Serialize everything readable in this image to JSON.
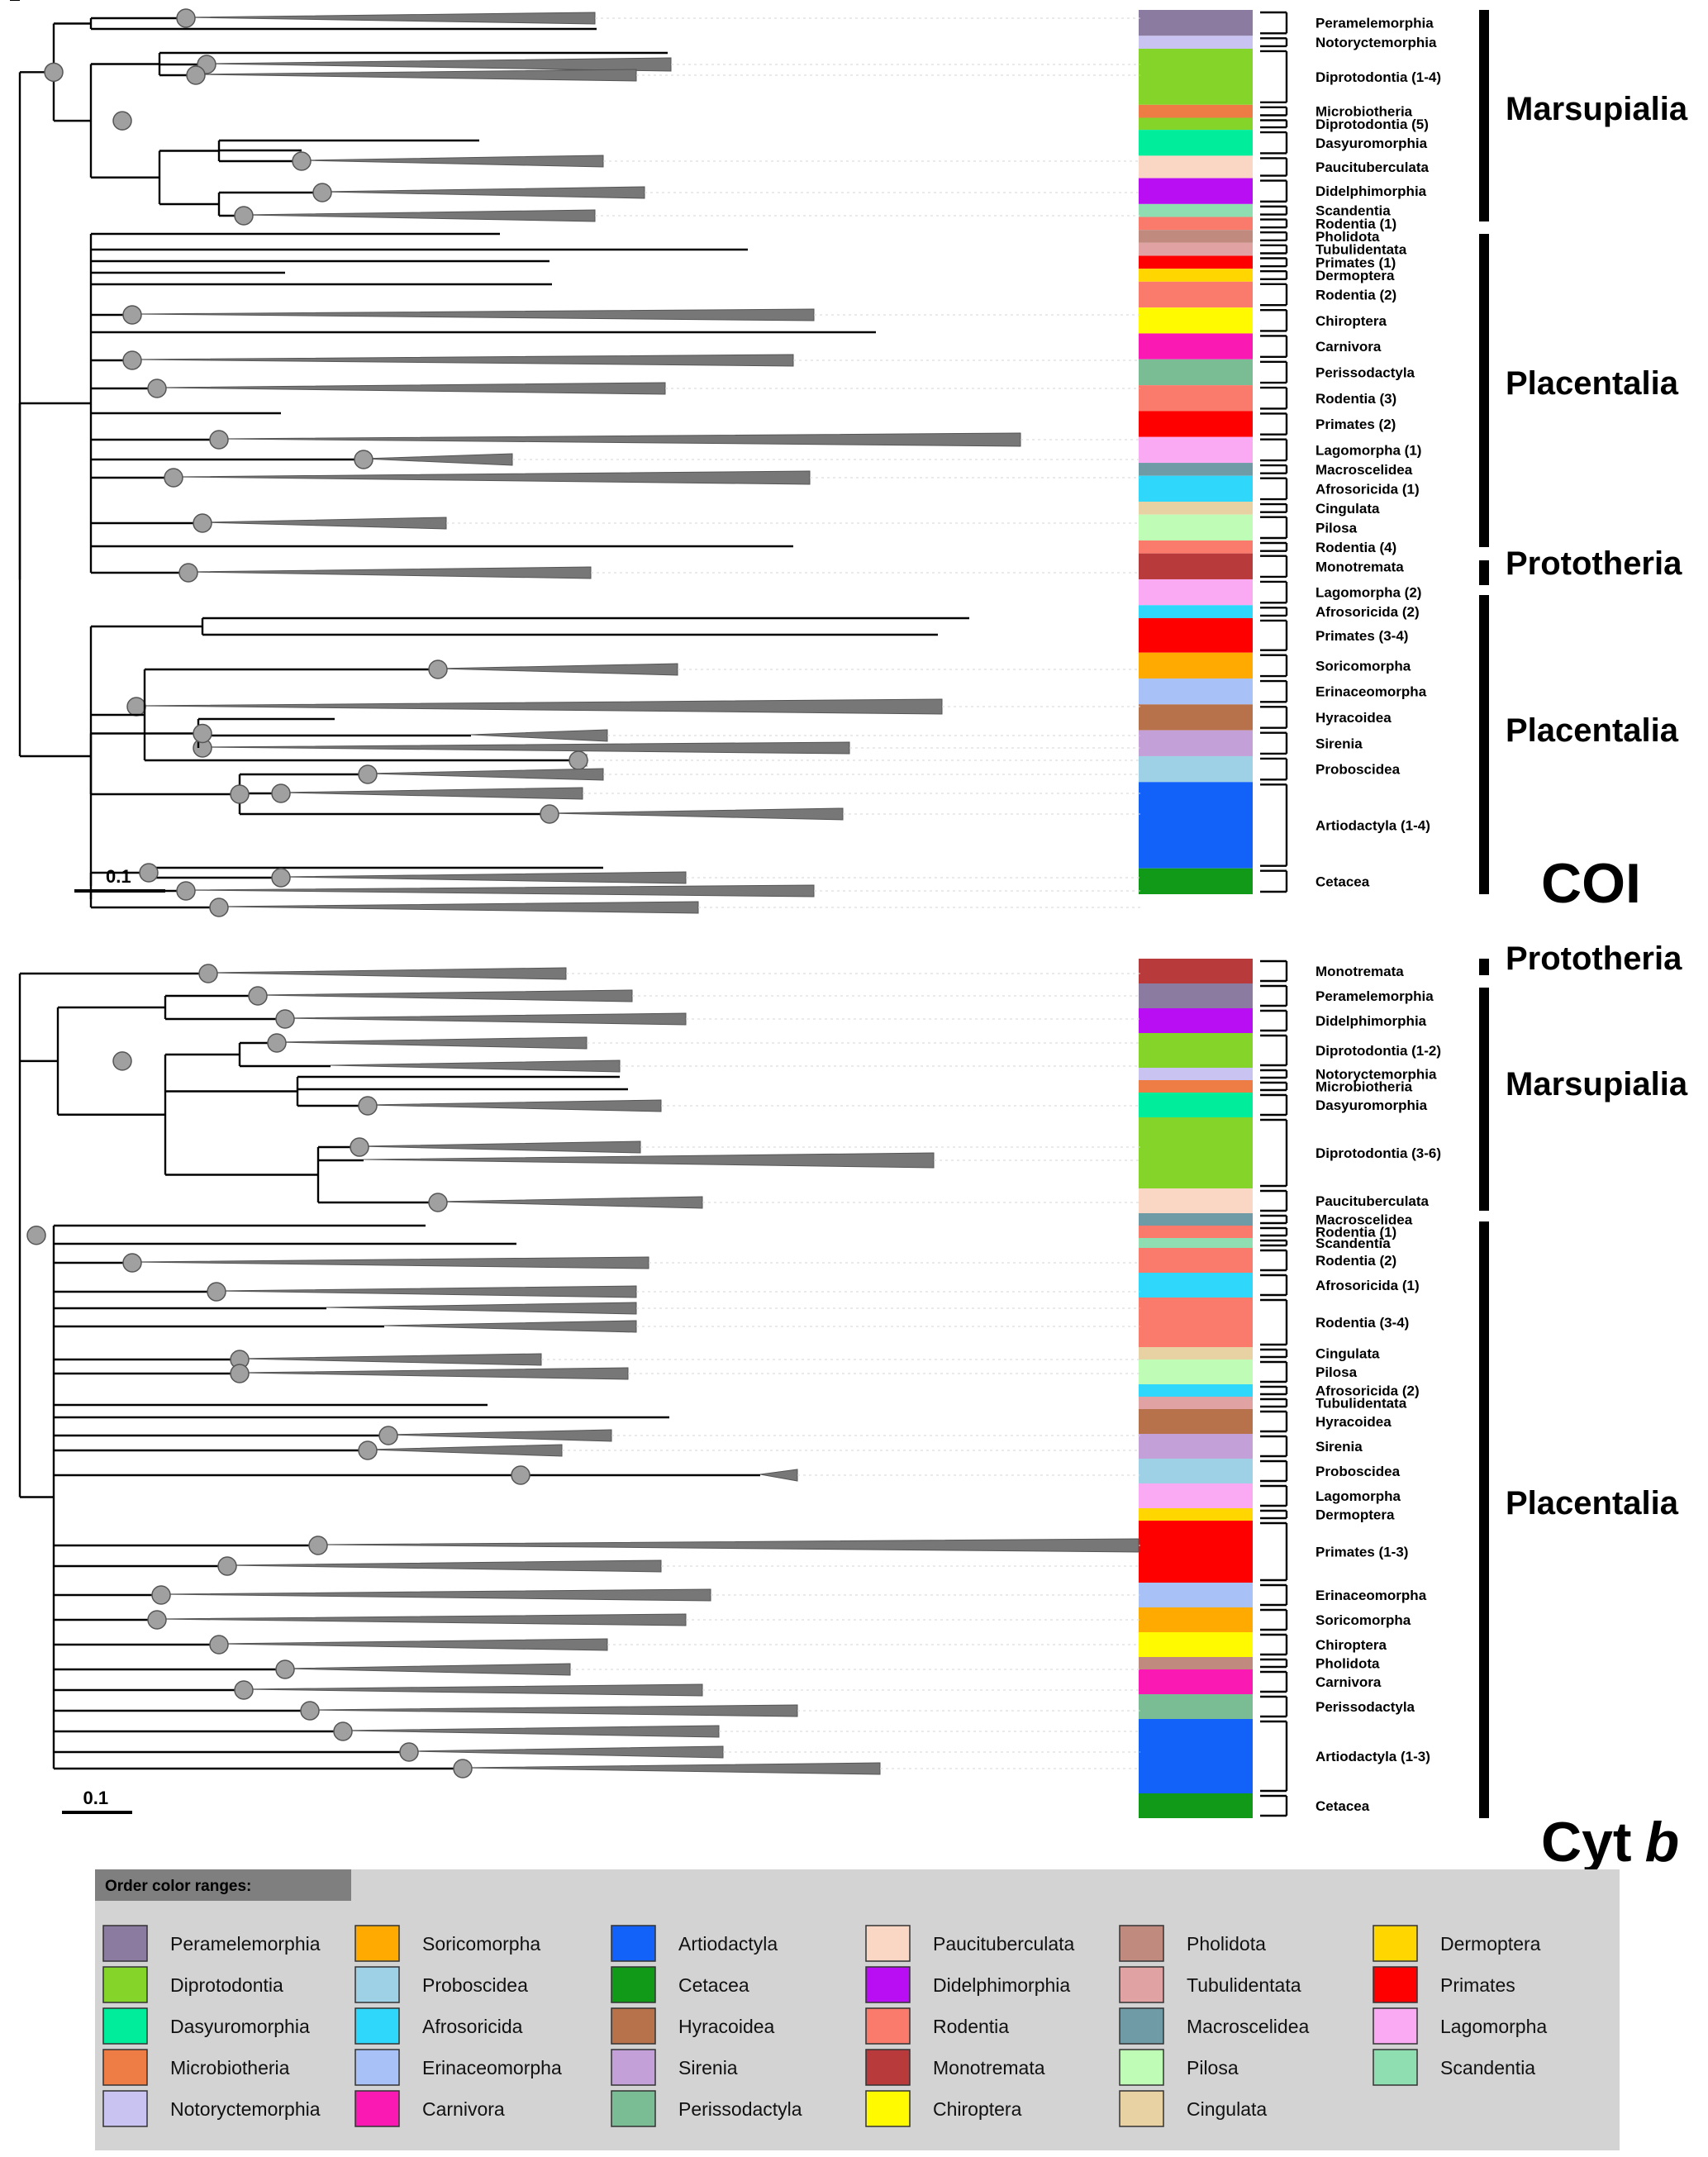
{
  "panels": [
    {
      "id": "coi",
      "marker": "COI",
      "marker_italic": false,
      "scale_label": "0.1",
      "bars": [
        {
          "color": "#8B7BA0",
          "label": "Peramelemorphia"
        },
        {
          "color": "#C8C3F0",
          "label": "Notoryctemorphia"
        },
        {
          "color": "#85D42A",
          "label": "Diprotodontia (1-4)"
        },
        {
          "color": "#EE7C45",
          "label": "Microbiotheria"
        },
        {
          "color": "#85D42A",
          "label": "Diprotodontia (5)"
        },
        {
          "color": "#00EE9B",
          "label": "Dasyuromorphia"
        },
        {
          "color": "#FAD6C4",
          "label": "Paucituberculata"
        },
        {
          "color": "#B90EF3",
          "label": "Didelphimorphia"
        },
        {
          "color": "#8FDEB1",
          "label": "Scandentia"
        },
        {
          "color": "#FA7A6C",
          "label": "Rodentia (1)"
        },
        {
          "color": "#C08A7E",
          "label": "Pholidota"
        },
        {
          "color": "#E0A2A2",
          "label": "Tubulidentata"
        },
        {
          "color": "#FF0000",
          "label": "Primates (1)"
        },
        {
          "color": "#FFD600",
          "label": "Dermoptera"
        },
        {
          "color": "#FA7A6C",
          "label": "Rodentia (2)"
        },
        {
          "color": "#FFFA00",
          "label": "Chiroptera"
        },
        {
          "color": "#FA1AB3",
          "label": "Carnivora"
        },
        {
          "color": "#7ABC94",
          "label": "Perissodactyla"
        },
        {
          "color": "#FA7A6C",
          "label": "Rodentia (3)"
        },
        {
          "color": "#FF0000",
          "label": "Primates (2)"
        },
        {
          "color": "#FAAAF2",
          "label": "Lagomorpha (1)"
        },
        {
          "color": "#6E9BA6",
          "label": "Macroscelidea"
        },
        {
          "color": "#2FD7FA",
          "label": "Afrosoricida (1)"
        },
        {
          "color": "#E8D1A2",
          "label": "Cingulata"
        },
        {
          "color": "#BFFDB7",
          "label": "Pilosa"
        },
        {
          "color": "#FA7A6C",
          "label": "Rodentia (4)"
        },
        {
          "color": "#B83A3A",
          "label": "Monotremata"
        },
        {
          "color": "#FAAAF2",
          "label": "Lagomorpha (2)"
        },
        {
          "color": "#2FD7FA",
          "label": "Afrosoricida (2)"
        },
        {
          "color": "#FF0000",
          "label": "Primates (3-4)"
        },
        {
          "color": "#FFAA00",
          "label": "Soricomorpha"
        },
        {
          "color": "#A8C2F8",
          "label": "Erinaceomorpha"
        },
        {
          "color": "#B7714B",
          "label": "Hyracoidea"
        },
        {
          "color": "#C3A0D8",
          "label": "Sirenia"
        },
        {
          "color": "#9ED0E6",
          "label": "Proboscidea"
        },
        {
          "color": "#1262FA",
          "label": "Artiodactyla (1-4)"
        },
        {
          "color": "#119A18",
          "label": "Cetacea"
        }
      ],
      "groups": [
        {
          "label": "Marsupialia"
        },
        {
          "label": "Placentalia"
        },
        {
          "label": "Prototheria"
        },
        {
          "label": "Placentalia"
        }
      ]
    },
    {
      "id": "cytb",
      "marker": "Cyt",
      "marker_suffix": "b",
      "marker_italic": true,
      "scale_label": "0.1",
      "bars": [
        {
          "color": "#B83A3A",
          "label": "Monotremata"
        },
        {
          "color": "#8B7BA0",
          "label": "Peramelemorphia"
        },
        {
          "color": "#B90EF3",
          "label": "Didelphimorphia"
        },
        {
          "color": "#85D42A",
          "label": "Diprotodontia (1-2)"
        },
        {
          "color": "#C8C3F0",
          "label": "Notoryctemorphia"
        },
        {
          "color": "#EE7C45",
          "label": "Microbiotheria"
        },
        {
          "color": "#00EE9B",
          "label": "Dasyuromorphia"
        },
        {
          "color": "#85D42A",
          "label": "Diprotodontia (3-6)"
        },
        {
          "color": "#FAD6C4",
          "label": "Paucituberculata"
        },
        {
          "color": "#6E9BA6",
          "label": "Macroscelidea"
        },
        {
          "color": "#FA7A6C",
          "label": "Rodentia (1)"
        },
        {
          "color": "#8FDEB1",
          "label": "Scandentia"
        },
        {
          "color": "#FA7A6C",
          "label": "Rodentia (2)"
        },
        {
          "color": "#2FD7FA",
          "label": "Afrosoricida (1)"
        },
        {
          "color": "#FA7A6C",
          "label": "Rodentia (3-4)"
        },
        {
          "color": "#E8D1A2",
          "label": "Cingulata"
        },
        {
          "color": "#BFFDB7",
          "label": "Pilosa"
        },
        {
          "color": "#2FD7FA",
          "label": "Afrosoricida (2)"
        },
        {
          "color": "#E0A2A2",
          "label": "Tubulidentata"
        },
        {
          "color": "#B7714B",
          "label": "Hyracoidea"
        },
        {
          "color": "#C3A0D8",
          "label": "Sirenia"
        },
        {
          "color": "#9ED0E6",
          "label": "Proboscidea"
        },
        {
          "color": "#FAAAF2",
          "label": "Lagomorpha"
        },
        {
          "color": "#FFD600",
          "label": "Dermoptera"
        },
        {
          "color": "#FF0000",
          "label": "Primates (1-3)"
        },
        {
          "color": "#A8C2F8",
          "label": "Erinaceomorpha"
        },
        {
          "color": "#FFAA00",
          "label": "Soricomorpha"
        },
        {
          "color": "#FFFA00",
          "label": "Chiroptera"
        },
        {
          "color": "#C08A7E",
          "label": "Pholidota"
        },
        {
          "color": "#FA1AB3",
          "label": "Carnivora"
        },
        {
          "color": "#7ABC94",
          "label": "Perissodactyla"
        },
        {
          "color": "#1262FA",
          "label": "Artiodactyla (1-3)"
        },
        {
          "color": "#119A18",
          "label": "Cetacea"
        }
      ],
      "groups": [
        {
          "label": "Prototheria"
        },
        {
          "label": "Marsupialia"
        },
        {
          "label": "Placentalia"
        }
      ]
    }
  ],
  "legend": {
    "title": "Order color ranges:",
    "items": [
      {
        "label": "Peramelemorphia",
        "color": "#8B7BA0"
      },
      {
        "label": "Diprotodontia",
        "color": "#85D42A"
      },
      {
        "label": "Dasyuromorphia",
        "color": "#00EE9B"
      },
      {
        "label": "Microbiotheria",
        "color": "#EE7C45"
      },
      {
        "label": "Notoryctemorphia",
        "color": "#C8C3F0"
      },
      {
        "label": "Soricomorpha",
        "color": "#FFAA00"
      },
      {
        "label": "Proboscidea",
        "color": "#9ED0E6"
      },
      {
        "label": "Afrosoricida",
        "color": "#2FD7FA"
      },
      {
        "label": "Erinaceomorpha",
        "color": "#A8C2F8"
      },
      {
        "label": "Carnivora",
        "color": "#FA1AB3"
      },
      {
        "label": "Artiodactyla",
        "color": "#1262FA"
      },
      {
        "label": "Cetacea",
        "color": "#119A18"
      },
      {
        "label": "Hyracoidea",
        "color": "#B7714B"
      },
      {
        "label": "Sirenia",
        "color": "#C3A0D8"
      },
      {
        "label": "Perissodactyla",
        "color": "#7ABC94"
      },
      {
        "label": "Paucituberculata",
        "color": "#FAD6C4"
      },
      {
        "label": "Didelphimorphia",
        "color": "#B90EF3"
      },
      {
        "label": "Rodentia",
        "color": "#FA7A6C"
      },
      {
        "label": "Monotremata",
        "color": "#B83A3A"
      },
      {
        "label": "Chiroptera",
        "color": "#FFFA00"
      },
      {
        "label": "Pholidota",
        "color": "#C08A7E"
      },
      {
        "label": "Tubulidentata",
        "color": "#E0A2A2"
      },
      {
        "label": "Macroscelidea",
        "color": "#6E9BA6"
      },
      {
        "label": "Pilosa",
        "color": "#BFFDB7"
      },
      {
        "label": "Cingulata",
        "color": "#E8D1A2"
      },
      {
        "label": "Dermoptera",
        "color": "#FFD600"
      },
      {
        "label": "Primates",
        "color": "#FF0000"
      },
      {
        "label": "Lagomorpha",
        "color": "#FAAAF2"
      },
      {
        "label": "Scandentia",
        "color": "#8FDEB1"
      }
    ]
  }
}
